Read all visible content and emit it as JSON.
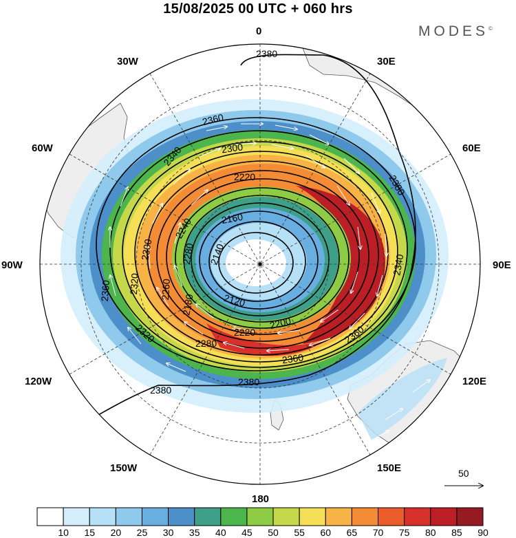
{
  "title": "15/08/2025  00 UTC  + 060 hrs",
  "brand": "MODES",
  "brand_mark": "©",
  "projection": "south-polar-stereographic",
  "longitude_labels": {
    "lon_0": "0",
    "lon_30e": "30E",
    "lon_60e": "60E",
    "lon_90e": "90E",
    "lon_120e": "120E",
    "lon_150e": "150E",
    "lon_180": "180",
    "lon_150w": "150W",
    "lon_120w": "120W",
    "lon_90w": "90W",
    "lon_60w": "60W",
    "lon_30w": "30W"
  },
  "field": "wind speed (shaded) and geopotential height (contours) with wind vectors",
  "contour_labels": [
    {
      "id": "c2380-top",
      "text": "2380"
    },
    {
      "id": "c2360-top",
      "text": "2360"
    },
    {
      "id": "c2340-w",
      "text": "2340"
    },
    {
      "id": "c2300-top",
      "text": "2300"
    },
    {
      "id": "c2220-top",
      "text": "2220"
    },
    {
      "id": "c2240-w",
      "text": "2240"
    },
    {
      "id": "c2160",
      "text": "2160"
    },
    {
      "id": "c2140",
      "text": "2140"
    },
    {
      "id": "c2120",
      "text": "2120"
    },
    {
      "id": "c2300-w",
      "text": "2300"
    },
    {
      "id": "c2280-w",
      "text": "2280"
    },
    {
      "id": "c2260-w",
      "text": "2260"
    },
    {
      "id": "c2320-w",
      "text": "2320"
    },
    {
      "id": "c2360-w",
      "text": "2360"
    },
    {
      "id": "c2180",
      "text": "2180"
    },
    {
      "id": "c2320-sw",
      "text": "2320"
    },
    {
      "id": "c2280-s",
      "text": "2280"
    },
    {
      "id": "c2220-s",
      "text": "2220"
    },
    {
      "id": "c2200-s",
      "text": "2200"
    },
    {
      "id": "c2360-s",
      "text": "2360"
    },
    {
      "id": "c2360-se",
      "text": "2360"
    },
    {
      "id": "c2340-e",
      "text": "2340"
    },
    {
      "id": "c2380-e",
      "text": "2380"
    },
    {
      "id": "c2380-s",
      "text": "2380"
    },
    {
      "id": "c2380-sw",
      "text": "2380"
    }
  ],
  "reference_vector": {
    "label": "50"
  },
  "colorbar": {
    "ticks": [
      "10",
      "15",
      "20",
      "25",
      "30",
      "35",
      "40",
      "45",
      "50",
      "55",
      "60",
      "65",
      "70",
      "75",
      "80",
      "85",
      "90"
    ],
    "colors": [
      "#ffffff",
      "#d4eefb",
      "#b6e0f6",
      "#8fc9ec",
      "#68aee0",
      "#4d8fc9",
      "#3fa089",
      "#4cb54c",
      "#8fcc46",
      "#c5d84a",
      "#f4df56",
      "#f7b346",
      "#f48c36",
      "#ea5d2a",
      "#d8302a",
      "#bb1e24",
      "#961a22"
    ]
  },
  "colors": {
    "land": "#eeeeee",
    "coast": "#555555",
    "grid": "#333333",
    "contour": "#000000",
    "vector": "#ffffff"
  }
}
